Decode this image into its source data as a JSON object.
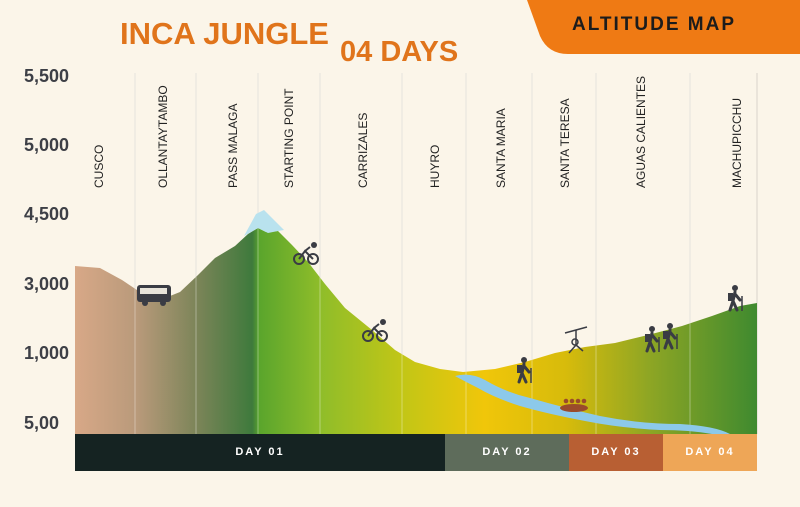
{
  "title_line1": "INCA JUNGLE",
  "title_line2": "04 DAYS",
  "banner": "ALTITUDE MAP",
  "colors": {
    "background": "#fbf5e9",
    "title": "#e0741b",
    "banner": "#ef7a14",
    "river": "#8cc9ea",
    "snow": "#b9e2ee"
  },
  "chart_data": {
    "type": "area",
    "y_tick_labels": [
      "5,500",
      "5,000",
      "4,500",
      "3,000",
      "1,000",
      "5,00"
    ],
    "locations": [
      {
        "name": "CUSCO",
        "icon": ""
      },
      {
        "name": "OLLANTAYTAMBO",
        "icon": "bus-icon"
      },
      {
        "name": "PASS MALAGA",
        "icon": ""
      },
      {
        "name": "STARTING POINT",
        "icon": "mountain-bike-icon"
      },
      {
        "name": "CARRIZALES",
        "icon": "mountain-bike-icon"
      },
      {
        "name": "HUYRO",
        "icon": ""
      },
      {
        "name": "SANTA MARIA",
        "icon": "hiker-icon"
      },
      {
        "name": "SANTA TERESA",
        "icon": "zipline-icon"
      },
      {
        "name": "AGUAS CALIENTES",
        "icon": "hikers-icon"
      },
      {
        "name": "MACHUPICCHU",
        "icon": "hiker-icon"
      }
    ],
    "days": [
      {
        "label": "DAY 01",
        "color": "#152322"
      },
      {
        "label": "DAY 02",
        "color": "#5e6c5b"
      },
      {
        "label": "DAY 03",
        "color": "#b85f33"
      },
      {
        "label": "DAY 04",
        "color": "#eea657"
      }
    ],
    "grid": true
  }
}
